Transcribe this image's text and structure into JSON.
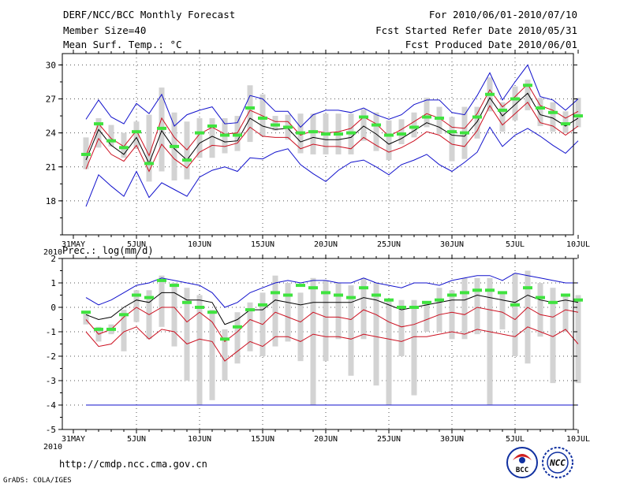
{
  "header": {
    "line1_left": "DERF/NCC/BCC Monthly Forecast",
    "line2_left": "Member Size=40",
    "line3_left": "Mean Surf. Temp.: °C",
    "line1_right": "For 2010/06/01-2010/07/10",
    "line2_right": "Fcst Started Refer Date 2010/05/31",
    "line3_right": "Fcst Produced Date 2010/06/01"
  },
  "footer": {
    "url": "http://cmdp.ncc.cma.gov.cn",
    "credit": "GrADS: COLA/IGES",
    "logo1": "BCC",
    "logo2": "NCC"
  },
  "colors": {
    "box": "#d3d3d3",
    "green": "#3fe33f",
    "blue": "#1010cc",
    "red": "#cc1020",
    "black": "#000000"
  },
  "x_axis": {
    "tick_days": [
      0,
      5,
      10,
      15,
      20,
      25,
      30,
      35,
      40
    ],
    "labels": [
      "31MAY",
      "5JUN",
      "10JUN",
      "15JUN",
      "20JUN",
      "25JUN",
      "30JUN",
      "5JUL",
      "10JUL"
    ],
    "year_label": "2010"
  },
  "chart_data": [
    {
      "type": "line",
      "title": "Mean Surf. Temp.: °C",
      "ylim": [
        15,
        31
      ],
      "yticks": [
        18,
        21,
        24,
        27,
        30
      ],
      "ytick_labels": [
        "18",
        "21",
        "24",
        "27",
        "30"
      ],
      "days": [
        1,
        2,
        3,
        4,
        5,
        6,
        7,
        8,
        9,
        10,
        11,
        12,
        13,
        14,
        15,
        16,
        17,
        18,
        19,
        20,
        21,
        22,
        23,
        24,
        25,
        26,
        27,
        28,
        29,
        30,
        31,
        32,
        33,
        34,
        35,
        36,
        37,
        38,
        39,
        40
      ],
      "box_low": [
        20.8,
        22.7,
        22.8,
        21.8,
        22.6,
        19.7,
        20.6,
        19.8,
        19.9,
        21.8,
        21.8,
        22.2,
        22.4,
        23.2,
        23.7,
        24.2,
        23.4,
        22.2,
        22.1,
        22.1,
        22.1,
        22.1,
        23.3,
        22.4,
        21.6,
        23.0,
        23.6,
        24.5,
        23.9,
        21.5,
        21.7,
        23.5,
        25.9,
        24.1,
        25.1,
        26.0,
        24.6,
        24.1,
        24.0,
        24.5
      ],
      "box_high": [
        23.6,
        25.3,
        24.7,
        24.0,
        25.0,
        25.6,
        28.0,
        25.8,
        25.0,
        25.3,
        25.3,
        25.3,
        25.5,
        28.2,
        27.4,
        25.5,
        25.6,
        25.7,
        25.7,
        25.7,
        25.7,
        25.7,
        26.1,
        25.8,
        25.1,
        25.2,
        25.8,
        27.1,
        26.3,
        25.4,
        26.3,
        26.3,
        28.9,
        26.7,
        28.1,
        28.7,
        27.1,
        26.7,
        25.9,
        27.1
      ],
      "ensemble_mean_green": [
        22.1,
        24.8,
        23.3,
        22.7,
        24.1,
        21.3,
        24.4,
        22.8,
        21.6,
        24.0,
        24.6,
        23.8,
        23.8,
        26.2,
        25.3,
        24.7,
        24.5,
        24.0,
        24.1,
        23.9,
        23.9,
        24.0,
        25.4,
        24.7,
        23.8,
        23.9,
        24.5,
        25.4,
        25.3,
        24.1,
        24.0,
        25.4,
        27.4,
        26.0,
        27.0,
        28.2,
        26.2,
        25.8,
        24.8,
        25.5
      ],
      "series": [
        {
          "name": "max",
          "color": "#1010cc",
          "values": [
            25.2,
            26.9,
            25.4,
            24.8,
            26.6,
            25.7,
            27.4,
            24.6,
            25.6,
            26.0,
            26.3,
            24.8,
            24.9,
            27.3,
            27.0,
            25.9,
            25.9,
            24.5,
            25.6,
            26.0,
            26.0,
            25.8,
            26.2,
            25.6,
            25.2,
            25.6,
            26.5,
            26.9,
            26.9,
            25.8,
            25.6,
            27.3,
            29.3,
            26.9,
            28.5,
            30.0,
            27.2,
            26.9,
            26.0,
            27.0
          ]
        },
        {
          "name": "mean",
          "color": "#000000",
          "values": [
            21.6,
            24.3,
            22.9,
            22.1,
            23.6,
            21.3,
            24.2,
            22.6,
            21.6,
            23.1,
            23.7,
            23.2,
            23.3,
            25.3,
            24.6,
            24.3,
            24.4,
            23.2,
            23.6,
            23.4,
            23.4,
            23.6,
            24.6,
            23.9,
            23.0,
            23.5,
            24.2,
            24.9,
            24.5,
            23.8,
            23.7,
            25.0,
            27.1,
            25.5,
            26.5,
            27.5,
            25.6,
            25.3,
            24.6,
            25.3
          ]
        },
        {
          "name": "mean_plus_sd",
          "color": "#cc1020",
          "values": [
            22.0,
            24.8,
            23.5,
            22.8,
            24.2,
            22.0,
            25.3,
            23.6,
            22.5,
            23.9,
            24.5,
            23.9,
            24.0,
            26.0,
            25.5,
            25.0,
            25.0,
            23.8,
            24.2,
            24.0,
            24.1,
            24.4,
            25.4,
            24.8,
            23.7,
            24.3,
            25.0,
            25.7,
            25.3,
            24.5,
            24.4,
            25.7,
            27.8,
            26.3,
            27.2,
            28.3,
            26.4,
            26.0,
            25.3,
            25.9
          ]
        },
        {
          "name": "mean_minus_sd",
          "color": "#cc1020",
          "values": [
            20.8,
            23.5,
            22.1,
            21.5,
            22.9,
            20.6,
            23.0,
            21.7,
            20.9,
            22.3,
            22.9,
            22.8,
            23.1,
            24.5,
            23.7,
            23.6,
            23.6,
            22.6,
            23.0,
            22.8,
            22.8,
            22.6,
            23.6,
            22.9,
            22.3,
            22.7,
            23.3,
            24.1,
            23.8,
            23.0,
            22.8,
            24.2,
            26.4,
            24.7,
            25.7,
            26.7,
            24.9,
            24.6,
            23.8,
            24.6
          ]
        },
        {
          "name": "min",
          "color": "#1010cc",
          "values": [
            17.5,
            20.3,
            19.3,
            18.4,
            20.6,
            18.3,
            19.6,
            19.0,
            18.4,
            20.1,
            20.7,
            21.0,
            20.6,
            21.8,
            21.7,
            22.3,
            22.6,
            21.2,
            20.4,
            19.7,
            20.7,
            21.4,
            21.6,
            21.0,
            20.3,
            21.2,
            21.6,
            22.1,
            21.2,
            20.6,
            21.4,
            22.3,
            24.5,
            22.8,
            23.8,
            24.4,
            23.7,
            22.9,
            22.2,
            23.3
          ]
        }
      ]
    },
    {
      "type": "line",
      "title": "Prec.: log(mm/d)",
      "ylim": [
        -5,
        2
      ],
      "yticks": [
        -5,
        -4,
        -3,
        -2,
        -1,
        0,
        1,
        2
      ],
      "ytick_labels": [
        "-5",
        "-4",
        "-3",
        "-2",
        "-1",
        "0",
        "1",
        "2"
      ],
      "days": [
        1,
        2,
        3,
        4,
        5,
        6,
        7,
        8,
        9,
        10,
        11,
        12,
        13,
        14,
        15,
        16,
        17,
        18,
        19,
        20,
        21,
        22,
        23,
        24,
        25,
        26,
        27,
        28,
        29,
        30,
        31,
        32,
        33,
        34,
        35,
        36,
        37,
        38,
        39,
        40
      ],
      "box_low": [
        -0.7,
        -1.4,
        -1.1,
        -1.8,
        -0.6,
        -1.3,
        -0.8,
        -1.6,
        -3.0,
        -4.0,
        -3.8,
        -3.0,
        -2.3,
        -1.8,
        -2.0,
        -1.6,
        -1.4,
        -2.2,
        -4.0,
        -2.2,
        -1.3,
        -2.8,
        -1.3,
        -3.2,
        -4.0,
        -2.0,
        -3.6,
        -1.0,
        -1.0,
        -1.3,
        -1.3,
        -1.1,
        -4.0,
        -0.9,
        -2.0,
        -2.3,
        -1.2,
        -3.1,
        -1.0,
        -3.1
      ],
      "box_high": [
        -0.2,
        -0.8,
        -0.7,
        -0.1,
        0.7,
        0.7,
        1.3,
        1.0,
        0.8,
        0.5,
        -0.1,
        -0.9,
        -0.2,
        0.2,
        0.6,
        1.3,
        1.0,
        0.6,
        1.2,
        1.1,
        1.0,
        0.9,
        1.2,
        1.0,
        0.3,
        0.3,
        0.3,
        0.2,
        0.8,
        0.7,
        1.2,
        1.2,
        1.2,
        0.6,
        1.4,
        1.5,
        1.0,
        0.8,
        0.5,
        0.5
      ],
      "ensemble_mean_green": [
        -0.2,
        -0.9,
        -0.9,
        -0.3,
        0.5,
        0.4,
        1.1,
        0.9,
        0.2,
        0.0,
        -0.2,
        -1.3,
        -0.8,
        -0.1,
        0.1,
        0.6,
        0.5,
        0.9,
        0.8,
        0.6,
        0.5,
        0.4,
        0.8,
        0.5,
        0.3,
        0.0,
        0.0,
        0.2,
        0.3,
        0.5,
        0.6,
        0.7,
        0.7,
        0.6,
        0.1,
        0.8,
        0.4,
        0.2,
        0.5,
        0.3
      ],
      "series": [
        {
          "name": "max",
          "color": "#1010cc",
          "values": [
            0.4,
            0.1,
            0.3,
            0.6,
            0.9,
            1.0,
            1.2,
            1.1,
            1.0,
            0.9,
            0.6,
            0.0,
            0.2,
            0.6,
            0.8,
            1.0,
            1.1,
            1.0,
            1.1,
            1.1,
            1.0,
            1.0,
            1.2,
            1.0,
            0.9,
            0.8,
            1.0,
            1.0,
            0.9,
            1.1,
            1.2,
            1.3,
            1.3,
            1.1,
            1.4,
            1.3,
            1.2,
            1.1,
            1.0,
            1.0
          ]
        },
        {
          "name": "mean",
          "color": "#000000",
          "values": [
            -0.3,
            -0.5,
            -0.4,
            0.0,
            0.3,
            0.2,
            0.6,
            0.6,
            0.3,
            0.3,
            0.2,
            -0.7,
            -0.5,
            -0.1,
            -0.1,
            0.3,
            0.2,
            0.1,
            0.2,
            0.2,
            0.2,
            0.2,
            0.4,
            0.3,
            0.1,
            -0.1,
            0.0,
            0.1,
            0.2,
            0.3,
            0.3,
            0.5,
            0.4,
            0.3,
            0.2,
            0.5,
            0.3,
            0.2,
            0.3,
            0.2
          ]
        },
        {
          "name": "mean_plus_sd",
          "color": "#cc1020",
          "values": [
            -0.5,
            -1.1,
            -0.9,
            -0.4,
            0.0,
            -0.3,
            0.0,
            0.0,
            -0.6,
            -0.2,
            -0.6,
            -1.4,
            -1.0,
            -0.5,
            -0.7,
            -0.2,
            -0.4,
            -0.6,
            -0.2,
            -0.4,
            -0.4,
            -0.5,
            -0.1,
            -0.3,
            -0.6,
            -0.8,
            -0.7,
            -0.5,
            -0.3,
            -0.2,
            -0.3,
            0.0,
            -0.1,
            -0.2,
            -0.5,
            0.0,
            -0.3,
            -0.4,
            -0.1,
            -0.2
          ]
        },
        {
          "name": "mean_minus_sd",
          "color": "#cc1020",
          "values": [
            -1.0,
            -1.6,
            -1.5,
            -1.0,
            -0.8,
            -1.3,
            -0.9,
            -1.0,
            -1.5,
            -1.3,
            -1.4,
            -2.2,
            -1.8,
            -1.4,
            -1.6,
            -1.2,
            -1.2,
            -1.4,
            -1.1,
            -1.2,
            -1.2,
            -1.3,
            -1.1,
            -1.2,
            -1.3,
            -1.4,
            -1.2,
            -1.2,
            -1.1,
            -1.0,
            -1.1,
            -0.9,
            -1.0,
            -1.1,
            -1.2,
            -0.8,
            -1.0,
            -1.2,
            -0.9,
            -1.5
          ]
        },
        {
          "name": "min",
          "color": "#1010cc",
          "values": [
            -4,
            -4,
            -4,
            -4,
            -4,
            -4,
            -4,
            -4,
            -4,
            -4,
            -4,
            -4,
            -4,
            -4,
            -4,
            -4,
            -4,
            -4,
            -4,
            -4,
            -4,
            -4,
            -4,
            -4,
            -4,
            -4,
            -4,
            -4,
            -4,
            -4,
            -4,
            -4,
            -4,
            -4,
            -4,
            -4,
            -4,
            -4,
            -4,
            -4
          ]
        }
      ]
    }
  ]
}
